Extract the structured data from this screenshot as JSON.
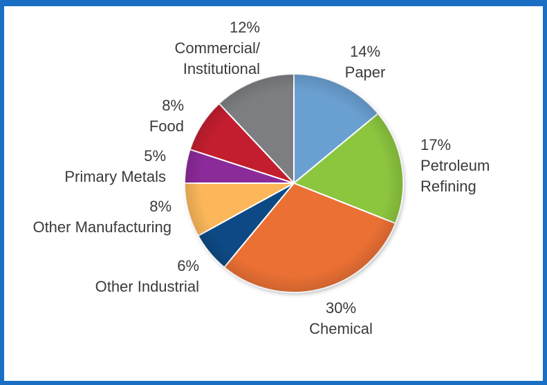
{
  "chart_data": {
    "type": "pie",
    "title": "",
    "legend": "none",
    "slices": [
      {
        "pct_label": "14%",
        "value": 14,
        "lines": [
          "Paper"
        ],
        "color": "#6a9fd1"
      },
      {
        "pct_label": "17%",
        "value": 17,
        "lines": [
          "Petroleum",
          "Refining"
        ],
        "color": "#8cc63f"
      },
      {
        "pct_label": "30%",
        "value": 30,
        "lines": [
          "Chemical"
        ],
        "color": "#ea7034"
      },
      {
        "pct_label": "6%",
        "value": 6,
        "lines": [
          "Other Industrial"
        ],
        "color": "#0d4a85"
      },
      {
        "pct_label": "8%",
        "value": 8,
        "lines": [
          "Other Manufacturing"
        ],
        "color": "#fcb75a"
      },
      {
        "pct_label": "5%",
        "value": 5,
        "lines": [
          "Primary Metals"
        ],
        "color": "#8b2a99"
      },
      {
        "pct_label": "8%",
        "value": 8,
        "lines": [
          "Food"
        ],
        "color": "#c21e2f"
      },
      {
        "pct_label": "12%",
        "value": 12,
        "lines": [
          "Commercial/",
          "Institutional"
        ],
        "color": "#7c7e82"
      }
    ]
  }
}
